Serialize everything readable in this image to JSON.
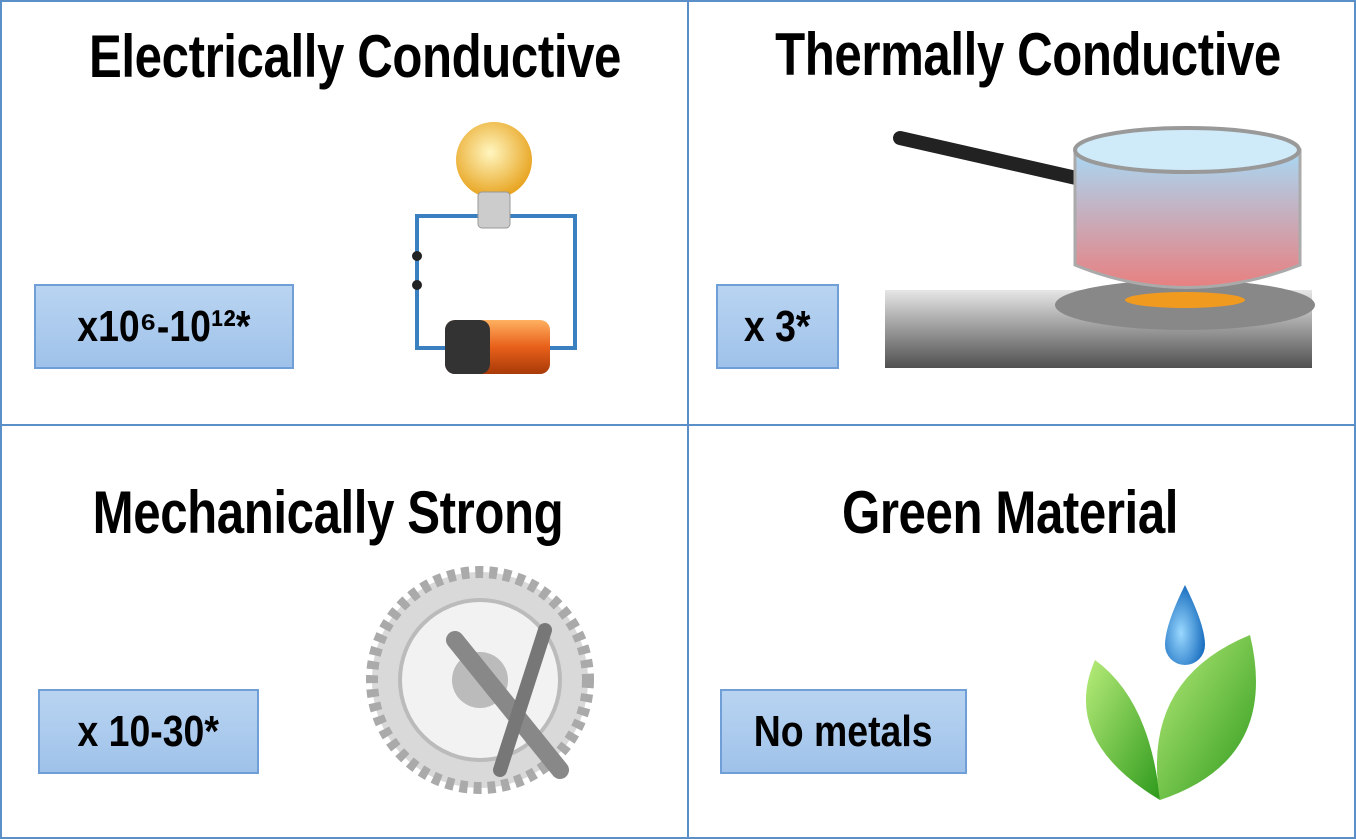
{
  "cells": [
    {
      "title": "Electrically Conductive",
      "badge": "x10⁶-10¹²*"
    },
    {
      "title": "Thermally Conductive",
      "badge": "x 3*"
    },
    {
      "title": "Mechanically Strong",
      "badge": "x 10-30*"
    },
    {
      "title": "Green Material",
      "badge": "No metals"
    }
  ]
}
